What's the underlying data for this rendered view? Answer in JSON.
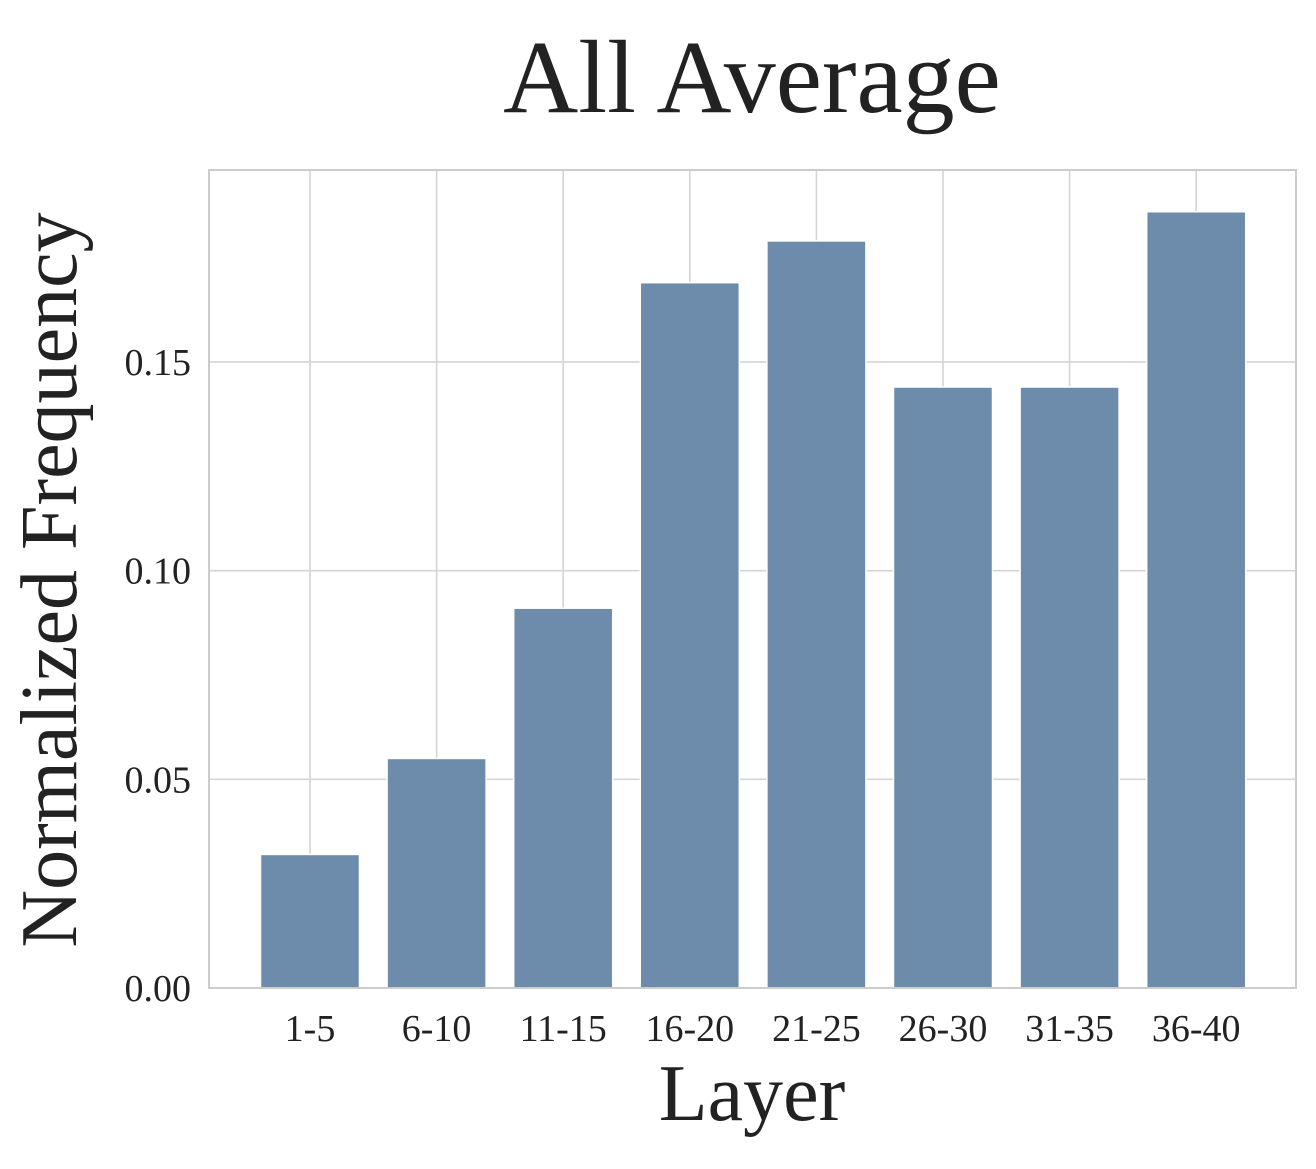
{
  "chart_data": {
    "type": "bar",
    "title": "All Average",
    "xlabel": "Layer",
    "ylabel": "Normalized Frequency",
    "categories": [
      "1-5",
      "6-10",
      "11-15",
      "16-20",
      "21-25",
      "26-30",
      "31-35",
      "36-40"
    ],
    "values": [
      0.032,
      0.055,
      0.091,
      0.169,
      0.179,
      0.144,
      0.144,
      0.186
    ],
    "ylim": [
      0,
      0.196
    ],
    "yticks": [
      0.0,
      0.05,
      0.1,
      0.15
    ],
    "ytick_labels": [
      "0.00",
      "0.05",
      "0.10",
      "0.15"
    ],
    "grid": true,
    "bar_color": "#6d8bab",
    "grid_color": "#d4d4d4"
  }
}
